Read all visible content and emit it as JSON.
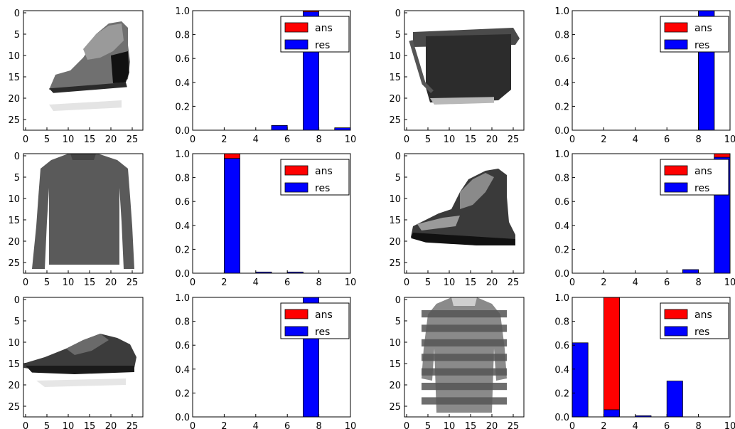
{
  "colors": {
    "ans": "#ff0000",
    "res": "#0000ff",
    "frame": "#000000",
    "background": "#ffffff"
  },
  "image_axis": {
    "xticks": [
      "0",
      "5",
      "10",
      "15",
      "20",
      "25"
    ],
    "yticks": [
      "0",
      "5",
      "10",
      "15",
      "20",
      "25"
    ],
    "range": [
      0,
      28
    ]
  },
  "bar_axis": {
    "xticks": [
      "0",
      "2",
      "4",
      "6",
      "8",
      "10"
    ],
    "yticks": [
      "0.0",
      "0.2",
      "0.4",
      "0.6",
      "0.8",
      "1.0"
    ],
    "xlim": [
      0,
      10
    ],
    "ylim": [
      0,
      1
    ]
  },
  "legend": {
    "ans_label": "ans",
    "res_label": "res",
    "placement": "top-right"
  },
  "images": [
    {
      "item": "shoe",
      "icon": "shoe-image"
    },
    {
      "item": "bag",
      "icon": "bag-image"
    },
    {
      "item": "pullover",
      "icon": "pullover-image"
    },
    {
      "item": "ankle-boot",
      "icon": "ankle-boot-image"
    },
    {
      "item": "sneaker",
      "icon": "sneaker-image"
    },
    {
      "item": "shirt",
      "icon": "shirt-image"
    }
  ],
  "chart_data": [
    {
      "type": "bar",
      "categories": [
        0,
        1,
        2,
        3,
        4,
        5,
        6,
        7,
        8,
        9
      ],
      "series": [
        {
          "name": "ans",
          "values": [
            0,
            0,
            0,
            0,
            0,
            0,
            0,
            1,
            0,
            0
          ]
        },
        {
          "name": "res",
          "values": [
            0,
            0,
            0,
            0,
            0,
            0.04,
            0,
            0.99,
            0,
            0.02
          ]
        }
      ],
      "ylim": [
        0,
        1
      ],
      "legend": "top-right"
    },
    {
      "type": "bar",
      "categories": [
        0,
        1,
        2,
        3,
        4,
        5,
        6,
        7,
        8,
        9
      ],
      "series": [
        {
          "name": "ans",
          "values": [
            0,
            0,
            0,
            0,
            0,
            0,
            0,
            0,
            1,
            0
          ]
        },
        {
          "name": "res",
          "values": [
            0,
            0,
            0,
            0,
            0,
            0,
            0,
            0,
            1.0,
            0
          ]
        }
      ],
      "ylim": [
        0,
        1
      ],
      "legend": "top-right"
    },
    {
      "type": "bar",
      "categories": [
        0,
        1,
        2,
        3,
        4,
        5,
        6,
        7,
        8,
        9
      ],
      "series": [
        {
          "name": "ans",
          "values": [
            0,
            0,
            1,
            0,
            0,
            0,
            0,
            0,
            0,
            0
          ]
        },
        {
          "name": "res",
          "values": [
            0,
            0,
            0.96,
            0,
            0.01,
            0,
            0.01,
            0,
            0,
            0
          ]
        }
      ],
      "ylim": [
        0,
        1
      ],
      "legend": "top-right"
    },
    {
      "type": "bar",
      "categories": [
        0,
        1,
        2,
        3,
        4,
        5,
        6,
        7,
        8,
        9
      ],
      "series": [
        {
          "name": "ans",
          "values": [
            0,
            0,
            0,
            0,
            0,
            0,
            0,
            0,
            0,
            1
          ]
        },
        {
          "name": "res",
          "values": [
            0,
            0,
            0,
            0,
            0,
            0,
            0,
            0.03,
            0,
            0.97
          ]
        }
      ],
      "ylim": [
        0,
        1
      ],
      "legend": "top-right"
    },
    {
      "type": "bar",
      "categories": [
        0,
        1,
        2,
        3,
        4,
        5,
        6,
        7,
        8,
        9
      ],
      "series": [
        {
          "name": "ans",
          "values": [
            0,
            0,
            0,
            0,
            0,
            0,
            0,
            1,
            0,
            0
          ]
        },
        {
          "name": "res",
          "values": [
            0,
            0,
            0,
            0,
            0,
            0,
            0,
            1.0,
            0,
            0
          ]
        }
      ],
      "ylim": [
        0,
        1
      ],
      "legend": "top-right"
    },
    {
      "type": "bar",
      "categories": [
        0,
        1,
        2,
        3,
        4,
        5,
        6,
        7,
        8,
        9
      ],
      "series": [
        {
          "name": "ans",
          "values": [
            0,
            0,
            1,
            0,
            0,
            0,
            0,
            0,
            0,
            0
          ]
        },
        {
          "name": "res",
          "values": [
            0.62,
            0,
            0.06,
            0,
            0.01,
            0,
            0.3,
            0,
            0,
            0
          ]
        }
      ],
      "ylim": [
        0,
        1
      ],
      "legend": "top-right"
    }
  ]
}
